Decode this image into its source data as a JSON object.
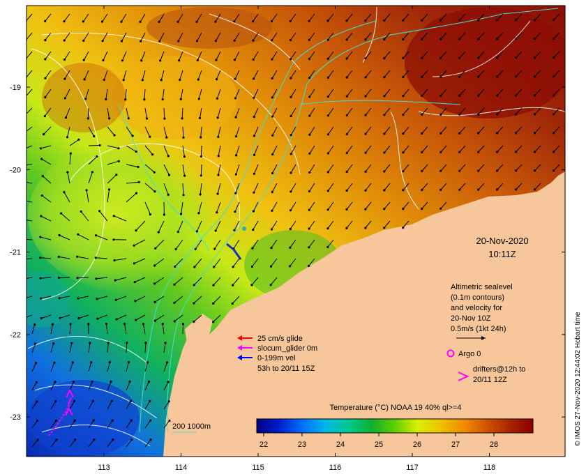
{
  "map": {
    "date": "20-Nov-2020",
    "time": "10:11Z",
    "x_ticks": [
      "113",
      "114",
      "115",
      "116",
      "117",
      "118"
    ],
    "y_ticks": [
      "-19",
      "-20",
      "-21",
      "-22",
      "-23"
    ],
    "altimetry_note": [
      "Altimetric sealevel",
      "(0.1m contours)",
      "and velocity for",
      "20-Nov 10Z",
      "0.5m/s (1kt 24h)"
    ],
    "argo_label": "Argo 0",
    "drifters_label": [
      "drifters@12h to",
      "20/11 12Z"
    ],
    "glider_legend": [
      "25 cm/s glide",
      "slocum_glider 0m",
      "0-199m vel",
      "53h to 20/11 15Z"
    ],
    "depth_contours_label": "200  1000m",
    "colorbar_title": "Temperature (°C) NOAA 19 40% ql>=4",
    "colorbar_ticks": [
      "22",
      "23",
      "24",
      "25",
      "26",
      "27",
      "28"
    ],
    "credit": "© IMOS 27-Nov-2020 12:44:02 Hobart time"
  },
  "colors": {
    "land": "#f7c69a",
    "arrow_red": "#ff0000",
    "arrow_magenta": "#ff00ff",
    "arrow_blue": "#0000ff",
    "depth_contour": "#40e0d0",
    "sea_contour": "#ffffff"
  },
  "colorbar_stops": [
    "#000080",
    "#0020d0",
    "#0070ff",
    "#00b8e8",
    "#00c890",
    "#10b030",
    "#60d000",
    "#d8f000",
    "#f0c000",
    "#f08c00",
    "#d05400",
    "#a82400",
    "#8c0000"
  ]
}
